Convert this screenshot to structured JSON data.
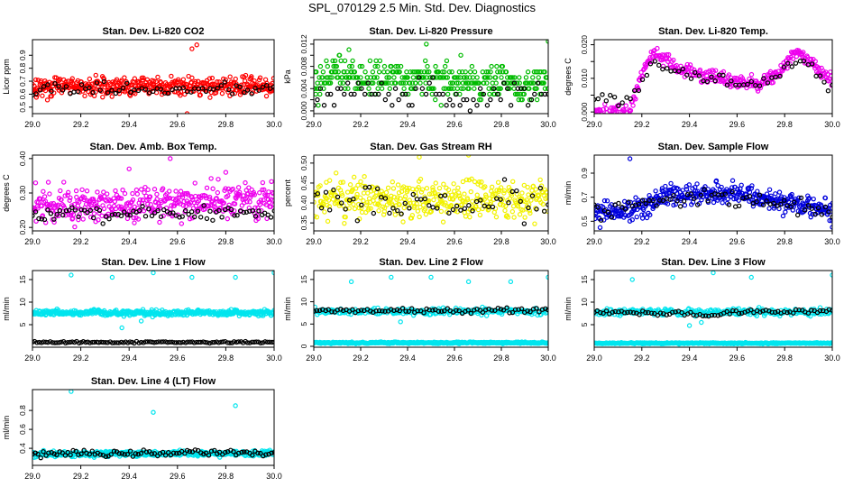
{
  "page": {
    "title": "SPL_070129  2.5 Min. Std. Dev. Diagnostics"
  },
  "colors": {
    "red": "#ff0000",
    "green": "#00bb00",
    "magenta": "#ee00ee",
    "yellow": "#f2f200",
    "blue": "#0000dd",
    "cyan": "#00e5ee",
    "black": "#000000"
  },
  "x_axis": {
    "range": [
      29.0,
      30.0
    ],
    "ticks": [
      "29.0",
      "29.2",
      "29.4",
      "29.6",
      "29.8",
      "30.0"
    ]
  },
  "chart_data": [
    {
      "id": "co2",
      "type": "scatter",
      "title": "Stan. Dev. Li-820 CO2",
      "ylabel": "Licor ppm",
      "xlim": [
        29.0,
        30.0
      ],
      "ylim": [
        0.45,
        1.02
      ],
      "yticks": [
        0.5,
        0.6,
        0.7,
        0.8,
        0.9
      ],
      "ytick_labels": [
        "0.5",
        "0.6",
        "0.7",
        "0.8",
        "0.9"
      ],
      "series": [
        {
          "name": "primary",
          "color": "red",
          "n": 420,
          "profile": [
            [
              29.0,
              0.66
            ],
            [
              30.0,
              0.66
            ]
          ],
          "noise": 0.05,
          "outliers": [
            [
              29.68,
              0.98
            ],
            [
              29.66,
              0.95
            ],
            [
              29.64,
              0.45
            ],
            [
              29.02,
              0.62
            ]
          ]
        },
        {
          "name": "black",
          "color": "black",
          "n": 65,
          "profile": [
            [
              29.0,
              0.64
            ],
            [
              30.0,
              0.64
            ]
          ],
          "noise": 0.04,
          "outliers": []
        }
      ]
    },
    {
      "id": "pressure",
      "type": "scatter",
      "title": "Stan. Dev. Li-820 Pressure",
      "ylabel": "kPa",
      "xlim": [
        29.0,
        30.0
      ],
      "ylim": [
        -0.0005,
        0.0128
      ],
      "yticks": [
        0,
        0.002,
        0.004,
        0.006,
        0.008,
        0.01,
        0.012
      ],
      "ytick_labels": [
        "0.000",
        "",
        "0.004",
        "",
        "0.008",
        "",
        "0.012"
      ],
      "series": [
        {
          "name": "primary",
          "color": "green",
          "n": 380,
          "profile": [
            [
              29.0,
              0.004
            ],
            [
              29.05,
              0.006
            ],
            [
              29.1,
              0.008
            ],
            [
              29.15,
              0.006
            ],
            [
              30.0,
              0.005
            ]
          ],
          "noise": 0.0022,
          "quant": 0.001,
          "outliers": [
            [
              29.48,
              0.012
            ],
            [
              30.0,
              0.0125
            ],
            [
              29.15,
              0.011
            ]
          ]
        },
        {
          "name": "black",
          "color": "black",
          "n": 70,
          "profile": [
            [
              29.0,
              0.003
            ],
            [
              30.0,
              0.003
            ]
          ],
          "noise": 0.0018,
          "quant": 0.001,
          "outliers": []
        }
      ]
    },
    {
      "id": "temp820",
      "type": "scatter",
      "title": "Stan. Dev. Li-820 Temp.",
      "ylabel": "degrees C",
      "xlim": [
        29.0,
        30.0
      ],
      "ylim": [
        -0.0005,
        0.0215
      ],
      "yticks": [
        0,
        0.005,
        0.01,
        0.015,
        0.02
      ],
      "ytick_labels": [
        "0.000",
        "",
        "0.010",
        "",
        "0.020"
      ],
      "series": [
        {
          "name": "primary",
          "color": "magenta",
          "n": 340,
          "profile": [
            [
              29.0,
              0.0
            ],
            [
              29.15,
              0.0
            ],
            [
              29.2,
              0.012
            ],
            [
              29.25,
              0.018
            ],
            [
              29.35,
              0.013
            ],
            [
              29.45,
              0.011
            ],
            [
              29.6,
              0.009
            ],
            [
              29.7,
              0.008
            ],
            [
              29.78,
              0.012
            ],
            [
              29.85,
              0.018
            ],
            [
              29.9,
              0.015
            ],
            [
              30.0,
              0.009
            ]
          ],
          "noise": 0.0015,
          "outliers": []
        },
        {
          "name": "black",
          "color": "black",
          "n": 60,
          "profile": [
            [
              29.15,
              0.004
            ],
            [
              29.25,
              0.014
            ],
            [
              29.45,
              0.01
            ],
            [
              29.7,
              0.008
            ],
            [
              29.85,
              0.016
            ],
            [
              30.0,
              0.008
            ]
          ],
          "noise": 0.0013,
          "outliers": []
        }
      ]
    },
    {
      "id": "boxtemp",
      "type": "scatter",
      "title": "Stan. Dev. Amb. Box Temp.",
      "ylabel": "degrees C",
      "xlim": [
        29.0,
        30.0
      ],
      "ylim": [
        0.19,
        0.41
      ],
      "yticks": [
        0.2,
        0.3,
        0.4
      ],
      "ytick_labels": [
        "0.20",
        "0.30",
        "0.40"
      ],
      "series": [
        {
          "name": "primary",
          "color": "magenta",
          "n": 400,
          "profile": [
            [
              29.0,
              0.26
            ],
            [
              30.0,
              0.28
            ]
          ],
          "noise": 0.035,
          "outliers": [
            [
              29.57,
              0.4
            ],
            [
              29.8,
              0.36
            ],
            [
              29.4,
              0.37
            ]
          ]
        },
        {
          "name": "black",
          "color": "black",
          "n": 80,
          "profile": [
            [
              29.0,
              0.24
            ],
            [
              30.0,
              0.24
            ]
          ],
          "noise": 0.015,
          "outliers": []
        }
      ]
    },
    {
      "id": "rh",
      "type": "scatter",
      "title": "Stan. Dev. Gas Stream RH",
      "ylabel": "percent",
      "xlim": [
        29.0,
        30.0
      ],
      "ylim": [
        0.33,
        0.52
      ],
      "yticks": [
        0.35,
        0.4,
        0.45,
        0.5
      ],
      "ytick_labels": [
        "0.35",
        "0.40",
        "0.45",
        "0.50"
      ],
      "series": [
        {
          "name": "primary",
          "color": "yellow",
          "n": 380,
          "profile": [
            [
              29.0,
              0.41
            ],
            [
              30.0,
              0.41
            ]
          ],
          "noise": 0.035,
          "outliers": [
            [
              29.66,
              0.52
            ],
            [
              29.45,
              0.515
            ]
          ]
        },
        {
          "name": "black",
          "color": "black",
          "n": 60,
          "profile": [
            [
              29.0,
              0.4
            ],
            [
              30.0,
              0.4
            ]
          ],
          "noise": 0.03,
          "outliers": []
        }
      ]
    },
    {
      "id": "sample",
      "type": "scatter",
      "title": "Stan. Dev. Sample Flow",
      "ylabel": "ml/min",
      "xlim": [
        29.0,
        30.0
      ],
      "ylim": [
        0.42,
        1.05
      ],
      "yticks": [
        0.5,
        0.7,
        0.9
      ],
      "ytick_labels": [
        "0.5",
        "0.7",
        "0.9"
      ],
      "series": [
        {
          "name": "primary",
          "color": "blue",
          "n": 420,
          "profile": [
            [
              29.0,
              0.57
            ],
            [
              29.2,
              0.6
            ],
            [
              29.3,
              0.72
            ],
            [
              29.6,
              0.73
            ],
            [
              29.8,
              0.66
            ],
            [
              30.0,
              0.6
            ]
          ],
          "noise": 0.06,
          "outliers": [
            [
              29.15,
              1.02
            ],
            [
              30.0,
              0.45
            ]
          ]
        },
        {
          "name": "black",
          "color": "black",
          "n": 70,
          "profile": [
            [
              29.0,
              0.55
            ],
            [
              29.3,
              0.68
            ],
            [
              29.6,
              0.7
            ],
            [
              30.0,
              0.58
            ]
          ],
          "noise": 0.05,
          "outliers": []
        }
      ]
    },
    {
      "id": "line1",
      "type": "scatter",
      "title": "Stan. Dev. Line 1 Flow",
      "ylabel": "ml/min",
      "xlim": [
        29.0,
        30.0
      ],
      "ylim": [
        0.0,
        17.0
      ],
      "yticks": [
        5,
        10,
        15
      ],
      "ytick_labels": [
        "5",
        "10",
        "15"
      ],
      "series": [
        {
          "name": "primary",
          "color": "cyan",
          "n": 440,
          "profile": [
            [
              29.0,
              7.6
            ],
            [
              30.0,
              7.6
            ]
          ],
          "noise": 0.45,
          "outliers": [
            [
              29.16,
              16
            ],
            [
              29.33,
              15.5
            ],
            [
              29.5,
              16.5
            ],
            [
              29.66,
              15.5
            ],
            [
              29.84,
              15.5
            ],
            [
              30.0,
              16.5
            ],
            [
              29.37,
              4.3
            ],
            [
              29.45,
              5.8
            ]
          ]
        },
        {
          "name": "black",
          "color": "black",
          "n": 110,
          "profile": [
            [
              29.0,
              1.1
            ],
            [
              30.0,
              1.1
            ]
          ],
          "noise": 0.12,
          "outliers": []
        }
      ]
    },
    {
      "id": "line2",
      "type": "scatter",
      "title": "Stan. Dev. Line 2 Flow",
      "ylabel": "ml/min",
      "xlim": [
        29.0,
        30.0
      ],
      "ylim": [
        -0.2,
        17.0
      ],
      "yticks": [
        0,
        5,
        10,
        15
      ],
      "ytick_labels": [
        "0",
        "5",
        "10",
        "15"
      ],
      "series": [
        {
          "name": "primary",
          "color": "cyan",
          "n": 420,
          "profile": [
            [
              29.0,
              0.8
            ],
            [
              30.0,
              0.8
            ]
          ],
          "noise": 0.12,
          "outliers": []
        },
        {
          "name": "primary2",
          "color": "cyan",
          "n": 260,
          "profile": [
            [
              29.0,
              7.8
            ],
            [
              30.0,
              7.8
            ]
          ],
          "noise": 0.5,
          "outliers": [
            [
              29.16,
              14.5
            ],
            [
              29.33,
              15.5
            ],
            [
              29.5,
              15.5
            ],
            [
              29.66,
              14.5
            ],
            [
              29.84,
              14.5
            ],
            [
              30.0,
              15.5
            ],
            [
              29.37,
              5.5
            ]
          ]
        },
        {
          "name": "black",
          "color": "black",
          "n": 80,
          "profile": [
            [
              29.0,
              7.9
            ],
            [
              30.0,
              8.1
            ]
          ],
          "noise": 0.35,
          "outliers": []
        }
      ]
    },
    {
      "id": "line3",
      "type": "scatter",
      "title": "Stan. Dev. Line 3 Flow",
      "ylabel": "ml/min",
      "xlim": [
        29.0,
        30.0
      ],
      "ylim": [
        0.0,
        17.0
      ],
      "yticks": [
        5,
        10,
        15
      ],
      "ytick_labels": [
        "5",
        "10",
        "15"
      ],
      "series": [
        {
          "name": "primary",
          "color": "cyan",
          "n": 420,
          "profile": [
            [
              29.0,
              0.9
            ],
            [
              30.0,
              0.9
            ]
          ],
          "noise": 0.1,
          "outliers": []
        },
        {
          "name": "primary2",
          "color": "cyan",
          "n": 260,
          "profile": [
            [
              29.0,
              7.8
            ],
            [
              30.0,
              7.8
            ]
          ],
          "noise": 0.55,
          "outliers": [
            [
              29.16,
              15.0
            ],
            [
              29.33,
              15.5
            ],
            [
              29.5,
              16.5
            ],
            [
              29.66,
              15.5
            ],
            [
              30.0,
              16.0
            ],
            [
              29.4,
              4.8
            ],
            [
              29.45,
              5.5
            ]
          ]
        },
        {
          "name": "black",
          "color": "black",
          "n": 80,
          "profile": [
            [
              29.0,
              7.8
            ],
            [
              29.4,
              7.6
            ],
            [
              29.5,
              6.8
            ],
            [
              29.6,
              7.8
            ],
            [
              30.0,
              8.1
            ]
          ],
          "noise": 0.35,
          "outliers": []
        }
      ]
    },
    {
      "id": "line4",
      "type": "scatter",
      "title": "Stan. Dev. Line 4 (LT) Flow",
      "ylabel": "ml/min",
      "xlim": [
        29.0,
        30.0
      ],
      "ylim": [
        0.22,
        1.02
      ],
      "yticks": [
        0.4,
        0.6,
        0.8
      ],
      "ytick_labels": [
        "0.4",
        "0.6",
        "0.8"
      ],
      "series": [
        {
          "name": "primary",
          "color": "cyan",
          "n": 440,
          "profile": [
            [
              29.0,
              0.34
            ],
            [
              30.0,
              0.35
            ]
          ],
          "noise": 0.02,
          "outliers": [
            [
              29.16,
              1.0
            ],
            [
              29.5,
              0.78
            ],
            [
              29.84,
              0.85
            ]
          ]
        },
        {
          "name": "black",
          "color": "black",
          "n": 90,
          "profile": [
            [
              29.0,
              0.34
            ],
            [
              30.0,
              0.35
            ]
          ],
          "noise": 0.025,
          "outliers": []
        }
      ]
    }
  ]
}
